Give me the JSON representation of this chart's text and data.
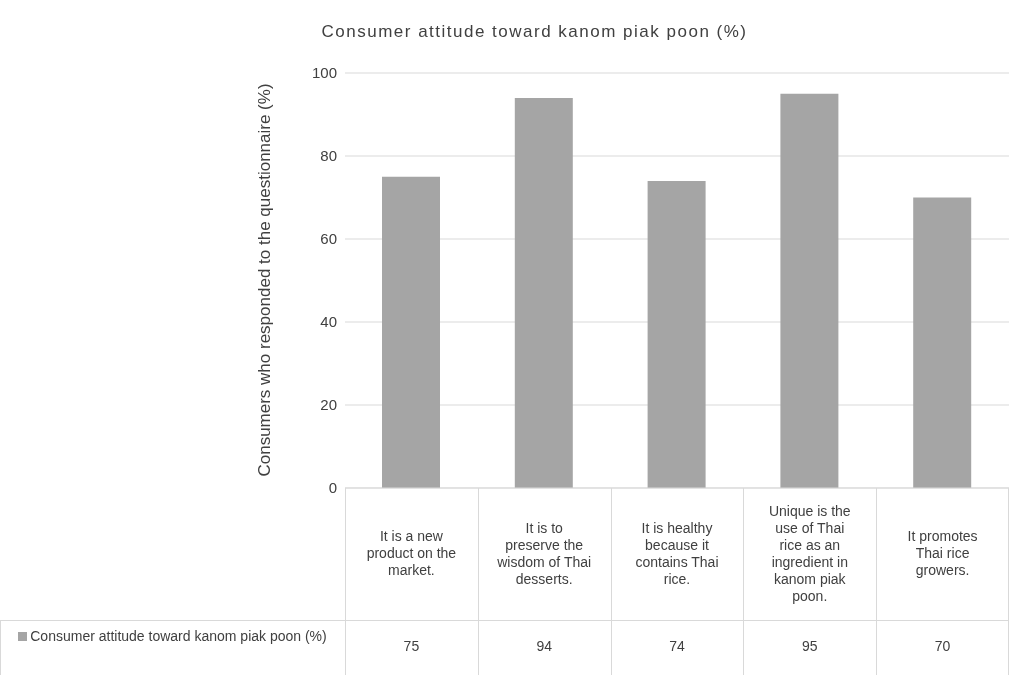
{
  "chart_data": {
    "type": "bar",
    "title": "Consumer attitude toward kanom piak poon (%)",
    "ylabel": "Consumers who responded to the questionnaire (%)",
    "categories": [
      "It is a new product on the market.",
      "It is to preserve the wisdom of Thai desserts.",
      "It is healthy because it contains Thai rice.",
      "Unique is the use of Thai rice as an ingredient in kanom piak poon.",
      "It promotes Thai rice growers."
    ],
    "series": [
      {
        "name": "Consumer attitude toward kanom piak poon (%)",
        "color": "#a5a5a5",
        "values": [
          75,
          94,
          74,
          95,
          70
        ]
      }
    ],
    "ylim": [
      0,
      100
    ],
    "yticks": [
      0,
      20,
      40,
      60,
      80,
      100
    ],
    "grid": "y",
    "legend": "bottom",
    "data_labels": true
  }
}
